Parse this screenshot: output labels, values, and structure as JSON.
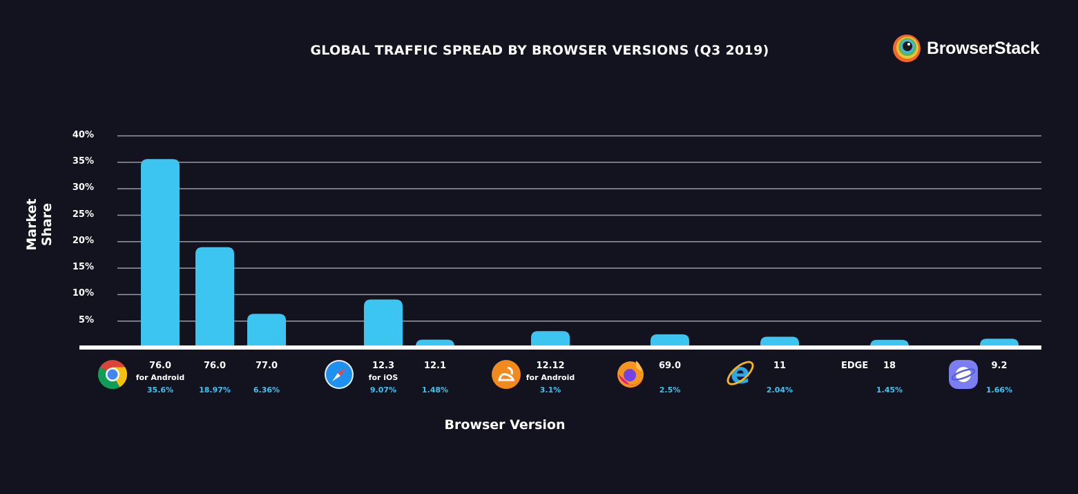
{
  "brand": {
    "name": "BrowserStack"
  },
  "colors": {
    "background": "#13121f",
    "bar": "#3dc5f2",
    "grid": "#9a99a8",
    "axis": "#ffffff",
    "percent_text": "#3dc5f2"
  },
  "chart_data": {
    "type": "bar",
    "title": "GLOBAL TRAFFIC SPREAD BY BROWSER VERSIONS (Q3 2019)",
    "xlabel": "Browser Version",
    "ylabel": "Market Share",
    "ylim": [
      0,
      40
    ],
    "yticks": [
      "5%",
      "10%",
      "15%",
      "20%",
      "25%",
      "30%",
      "35%",
      "40%"
    ],
    "grid": true,
    "legend": "none",
    "categories": [
      {
        "browser": "Chrome",
        "icon": "chrome-icon",
        "version": "76.0",
        "sub": "for Android",
        "value": 35.6,
        "label": "35.6%"
      },
      {
        "browser": "Chrome",
        "icon": "chrome-icon",
        "version": "76.0",
        "sub": "",
        "value": 18.97,
        "label": "18.97%"
      },
      {
        "browser": "Chrome",
        "icon": "chrome-icon",
        "version": "77.0",
        "sub": "",
        "value": 6.36,
        "label": "6.36%"
      },
      {
        "browser": "Safari",
        "icon": "safari-icon",
        "version": "12.3",
        "sub": "for iOS",
        "value": 9.07,
        "label": "9.07%"
      },
      {
        "browser": "Safari",
        "icon": "safari-icon",
        "version": "12.1",
        "sub": "",
        "value": 1.48,
        "label": "1.48%"
      },
      {
        "browser": "UC Browser",
        "icon": "uc-browser-icon",
        "version": "12.12",
        "sub": "for Android",
        "value": 3.1,
        "label": "3.1%"
      },
      {
        "browser": "Firefox",
        "icon": "firefox-icon",
        "version": "69.0",
        "sub": "",
        "value": 2.5,
        "label": "2.5%"
      },
      {
        "browser": "Internet Explorer",
        "icon": "ie-icon",
        "version": "11",
        "sub": "",
        "value": 2.04,
        "label": "2.04%"
      },
      {
        "browser": "Edge",
        "icon": "",
        "version": "18",
        "sub": "",
        "value": 1.45,
        "label": "1.45%"
      },
      {
        "browser": "Samsung Internet",
        "icon": "samsung-internet-icon",
        "version": "9.2",
        "sub": "",
        "value": 1.66,
        "label": "1.66%"
      }
    ],
    "edge_label": "EDGE"
  }
}
